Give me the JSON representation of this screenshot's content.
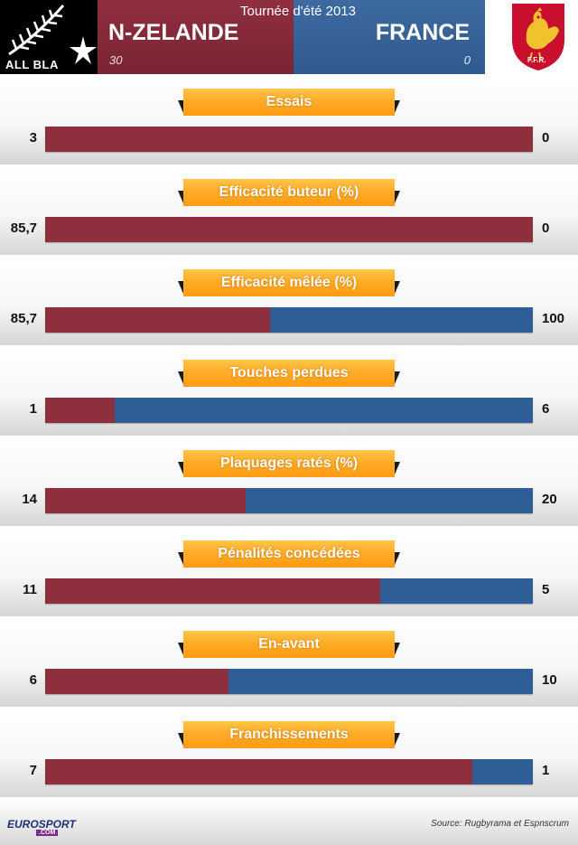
{
  "header": {
    "title": "Tournée d'été 2013",
    "home_team": "N-ZELANDE",
    "away_team": "FRANCE",
    "home_score": "30",
    "away_score": "0",
    "home_logo_text": "ALL BLA",
    "away_logo_text": "F.F.R.",
    "home_color": "#8e2f3e",
    "away_color": "#2f5d96",
    "label_color": "#ff9a12"
  },
  "chart_data": {
    "type": "bar",
    "orientation": "horizontal-stacked-comparison",
    "series": [
      {
        "name": "N-ZELANDE",
        "values": [
          3,
          85.7,
          85.7,
          1,
          14,
          11,
          6,
          7
        ]
      },
      {
        "name": "FRANCE",
        "values": [
          0,
          0,
          100,
          6,
          20,
          5,
          10,
          1
        ]
      }
    ],
    "categories": [
      "Essais",
      "Efficacité buteur (%)",
      "Efficacité mêlée (%)",
      "Touches perdues",
      "Plaquages ratés (%)",
      "Pénalités concédées",
      "En-avant",
      "Franchissements"
    ],
    "stats": [
      {
        "label": "Essais",
        "home": 3,
        "away": 0,
        "home_text": "3",
        "away_text": "0"
      },
      {
        "label": "Efficacité buteur (%)",
        "home": 85.7,
        "away": 0,
        "home_text": "85,7",
        "away_text": "0"
      },
      {
        "label": "Efficacité mêlée (%)",
        "home": 85.7,
        "away": 100,
        "home_text": "85,7",
        "away_text": "100"
      },
      {
        "label": "Touches perdues",
        "home": 1,
        "away": 6,
        "home_text": "1",
        "away_text": "6"
      },
      {
        "label": "Plaquages ratés (%)",
        "home": 14,
        "away": 20,
        "home_text": "14",
        "away_text": "20"
      },
      {
        "label": "Pénalités concédées",
        "home": 11,
        "away": 5,
        "home_text": "11",
        "away_text": "5"
      },
      {
        "label": "En-avant",
        "home": 6,
        "away": 10,
        "home_text": "6",
        "away_text": "10"
      },
      {
        "label": "Franchissements",
        "home": 7,
        "away": 1,
        "home_text": "7",
        "away_text": "1"
      }
    ]
  },
  "footer": {
    "brand": "EUROSPORT",
    "brand_suffix": ".COM",
    "source": "Source: Rugbyrama et Espnscrum"
  }
}
